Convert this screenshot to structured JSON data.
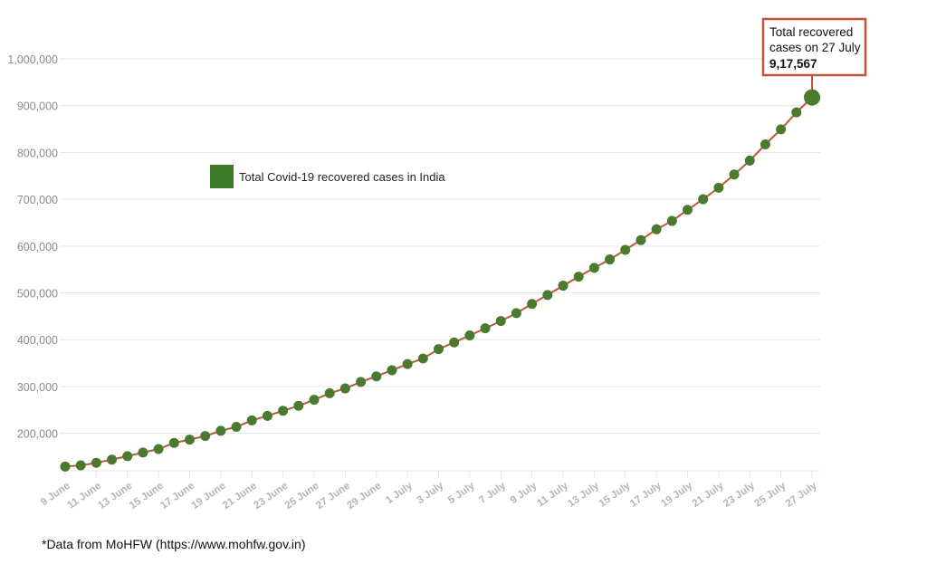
{
  "chart_data": {
    "type": "line",
    "title": "",
    "xlabel": "",
    "ylabel": "",
    "ylim": [
      120000,
      1000000
    ],
    "yticks": [
      200000,
      300000,
      400000,
      500000,
      600000,
      700000,
      800000,
      900000,
      1000000
    ],
    "ytick_labels": [
      "200,000",
      "300,000",
      "400,000",
      "500,000",
      "600,000",
      "700,000",
      "800,000",
      "900,000",
      "1,000,000"
    ],
    "categories": [
      "9 June",
      "10 June",
      "11 June",
      "12 June",
      "13 June",
      "14 June",
      "15 June",
      "16 June",
      "17 June",
      "18 June",
      "19 June",
      "20 June",
      "21 June",
      "22 June",
      "23 June",
      "24 June",
      "25 June",
      "26 June",
      "27 June",
      "28 June",
      "29 June",
      "30 June",
      "1 July",
      "2 July",
      "3 July",
      "4 July",
      "5 July",
      "6 July",
      "7 July",
      "8 July",
      "9 July",
      "10 July",
      "11 July",
      "12 July",
      "13 July",
      "14 July",
      "15 July",
      "16 July",
      "17 July",
      "18 July",
      "19 July",
      "20 July",
      "21 July",
      "22 July",
      "23 July",
      "24 July",
      "25 July",
      "26 July",
      "27 July"
    ],
    "xtick_labels_shown": [
      "9 June",
      "11 June",
      "13 June",
      "15 June",
      "17 June",
      "19 June",
      "21 June",
      "23 June",
      "25 June",
      "27 June",
      "29 June",
      "1 July",
      "3 July",
      "5 July",
      "7 July",
      "9 July",
      "11 July",
      "13 July",
      "15 July",
      "17 July",
      "19 July",
      "21 July",
      "23 July",
      "25 July",
      "27 July"
    ],
    "series": [
      {
        "name": "Total Covid-19 recovered cases in India",
        "values": [
          129000,
          131500,
          137000,
          143800,
          151100,
          158900,
          166500,
          179500,
          186600,
          194300,
          205300,
          213800,
          227700,
          237200,
          248200,
          258700,
          271700,
          285600,
          295900,
          309700,
          321700,
          334800,
          347900,
          359900,
          379900,
          394200,
          409100,
          424400,
          439900,
          456800,
          476400,
          495500,
          515400,
          534600,
          553500,
          571500,
          592000,
          612800,
          635800,
          653700,
          677400,
          700100,
          724600,
          753000,
          782600,
          817200,
          849400,
          885600,
          917567
        ],
        "color": "#4a7a2e",
        "line_color": "#c0553a"
      }
    ],
    "legend": {
      "label": "Total Covid-19 recovered cases in India",
      "placement": "upper-left",
      "color": "#3f7a2c"
    },
    "annotation": {
      "line1": "Total recovered",
      "line2": "cases on 27 July",
      "value": "9,17,567",
      "border_color": "#c0553a",
      "target_category": "27 July"
    },
    "grid": true
  },
  "footnote": "*Data from MoHFW (https://www.mohfw.gov.in)"
}
